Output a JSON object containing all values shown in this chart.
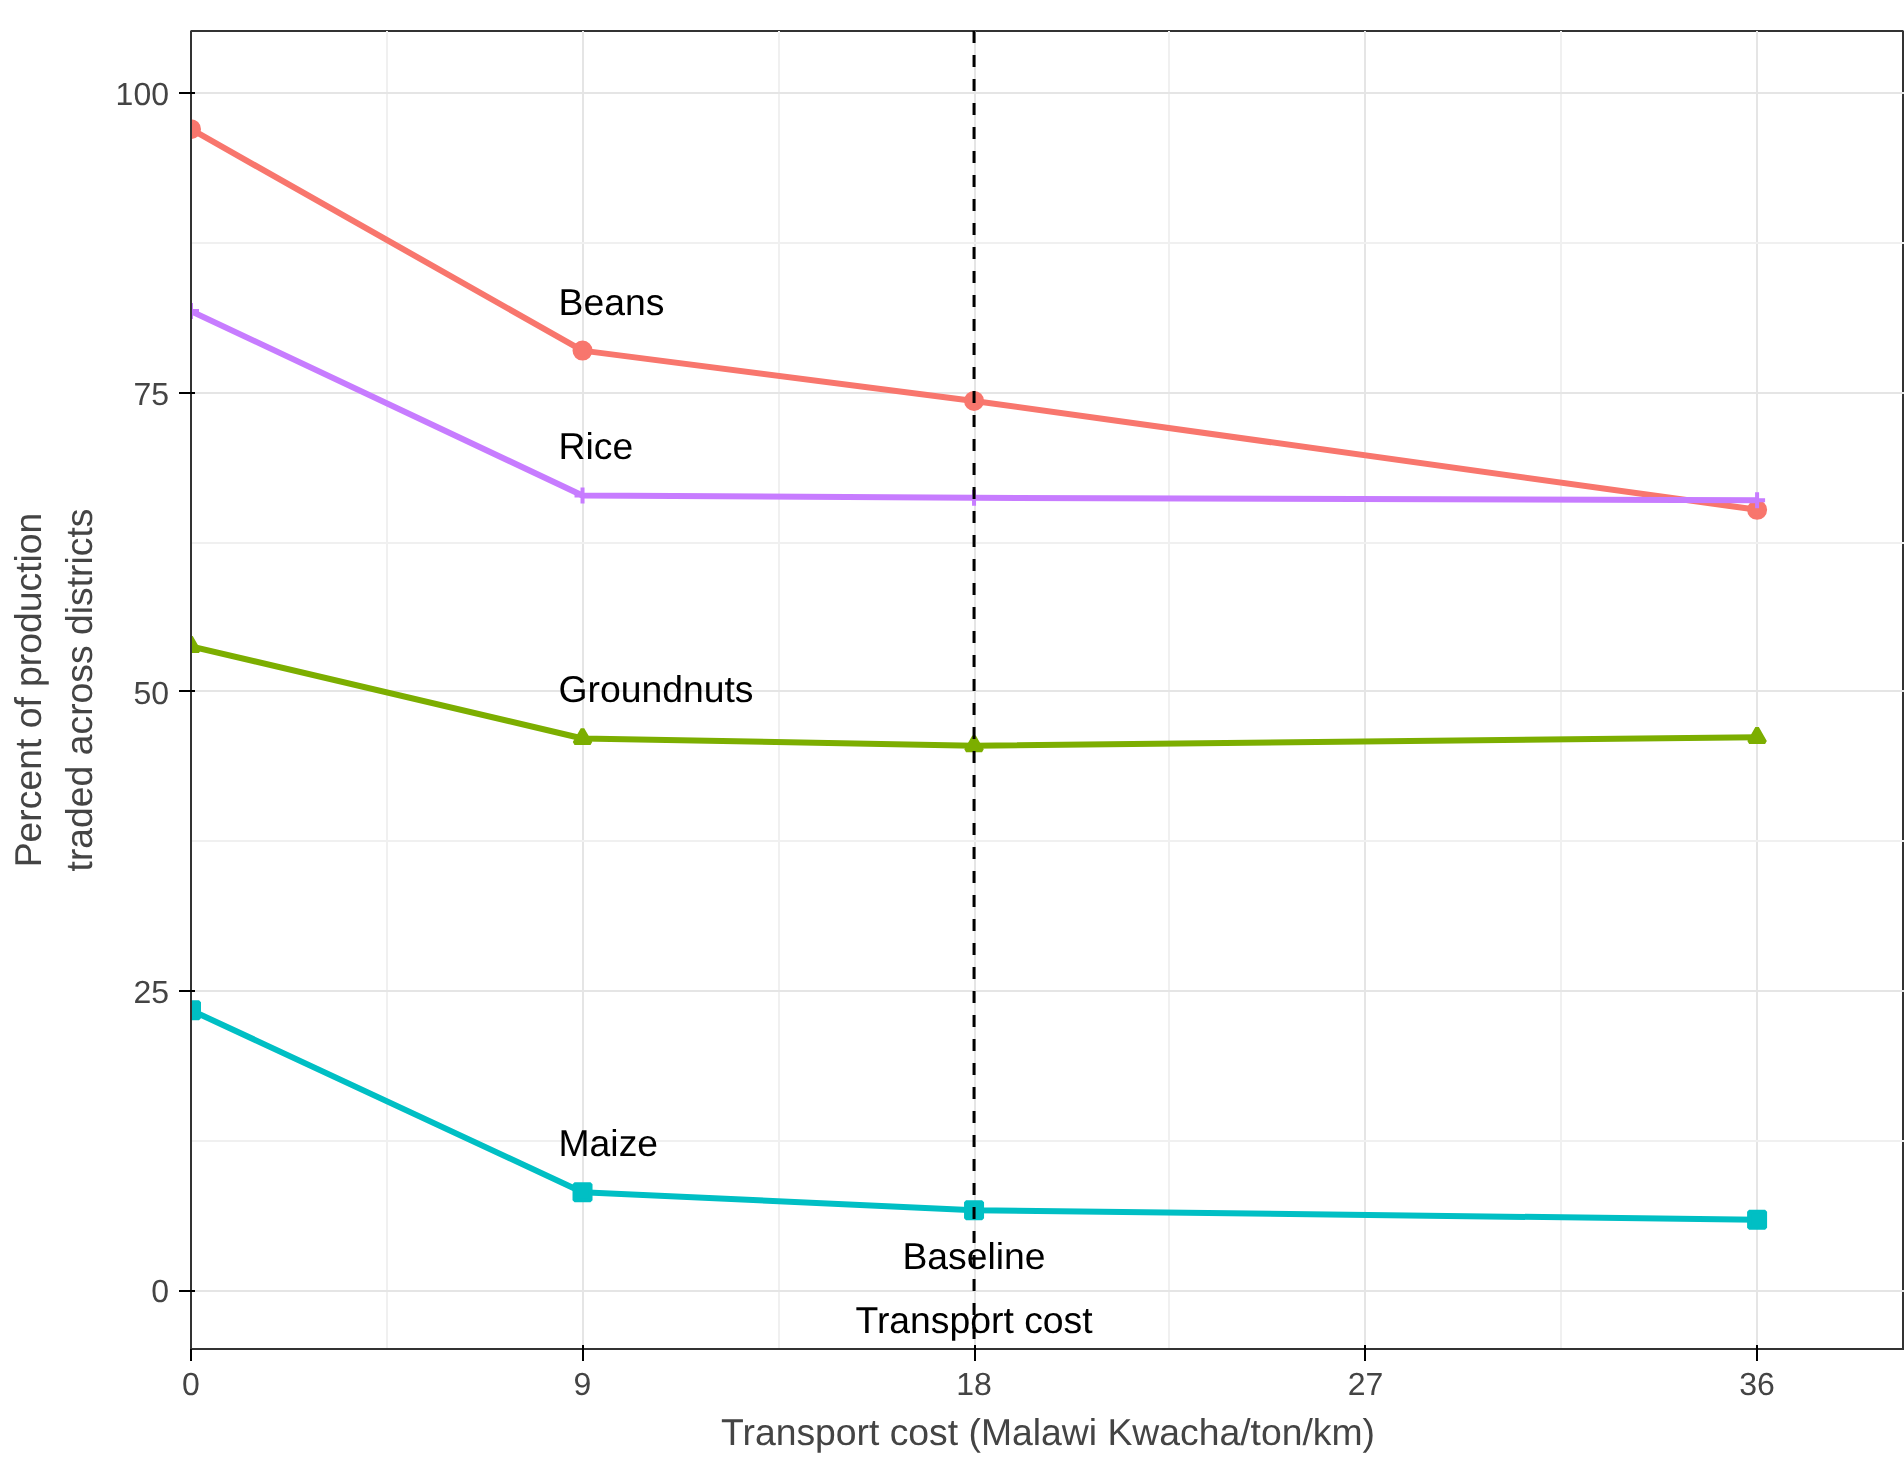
{
  "chart_data": {
    "type": "line",
    "xlabel": "Transport cost (Malawi Kwacha/ton/km)",
    "ylabel": "Percent of production\ntraded across districts",
    "x": [
      0,
      9,
      18,
      36
    ],
    "series": [
      {
        "name": "Beans",
        "color": "#f8766d",
        "marker": "circle",
        "values": [
          97,
          78.5,
          74.3,
          65.2
        ]
      },
      {
        "name": "Rice",
        "color": "#c77cff",
        "marker": "cross",
        "values": [
          81.8,
          66.4,
          66.2,
          66.0
        ]
      },
      {
        "name": "Groundnuts",
        "color": "#7cae00",
        "marker": "triangle",
        "values": [
          53.8,
          46.1,
          45.5,
          46.2
        ]
      },
      {
        "name": "Maize",
        "color": "#00bfc4",
        "marker": "square",
        "values": [
          23.4,
          8.2,
          6.7,
          5.9
        ]
      }
    ],
    "xlim": [
      0,
      39.4
    ],
    "ylim": [
      -4.9,
      105.2
    ],
    "xticks": [
      0,
      9,
      18,
      27,
      36
    ],
    "yticks": [
      0,
      25,
      50,
      75,
      100
    ],
    "ref_lines": [
      {
        "axis": "x",
        "value": 18,
        "label": "Baseline\nTransport cost",
        "color": "#000000",
        "line_style": "dashed"
      }
    ],
    "grid": true,
    "line_style": "solid"
  }
}
